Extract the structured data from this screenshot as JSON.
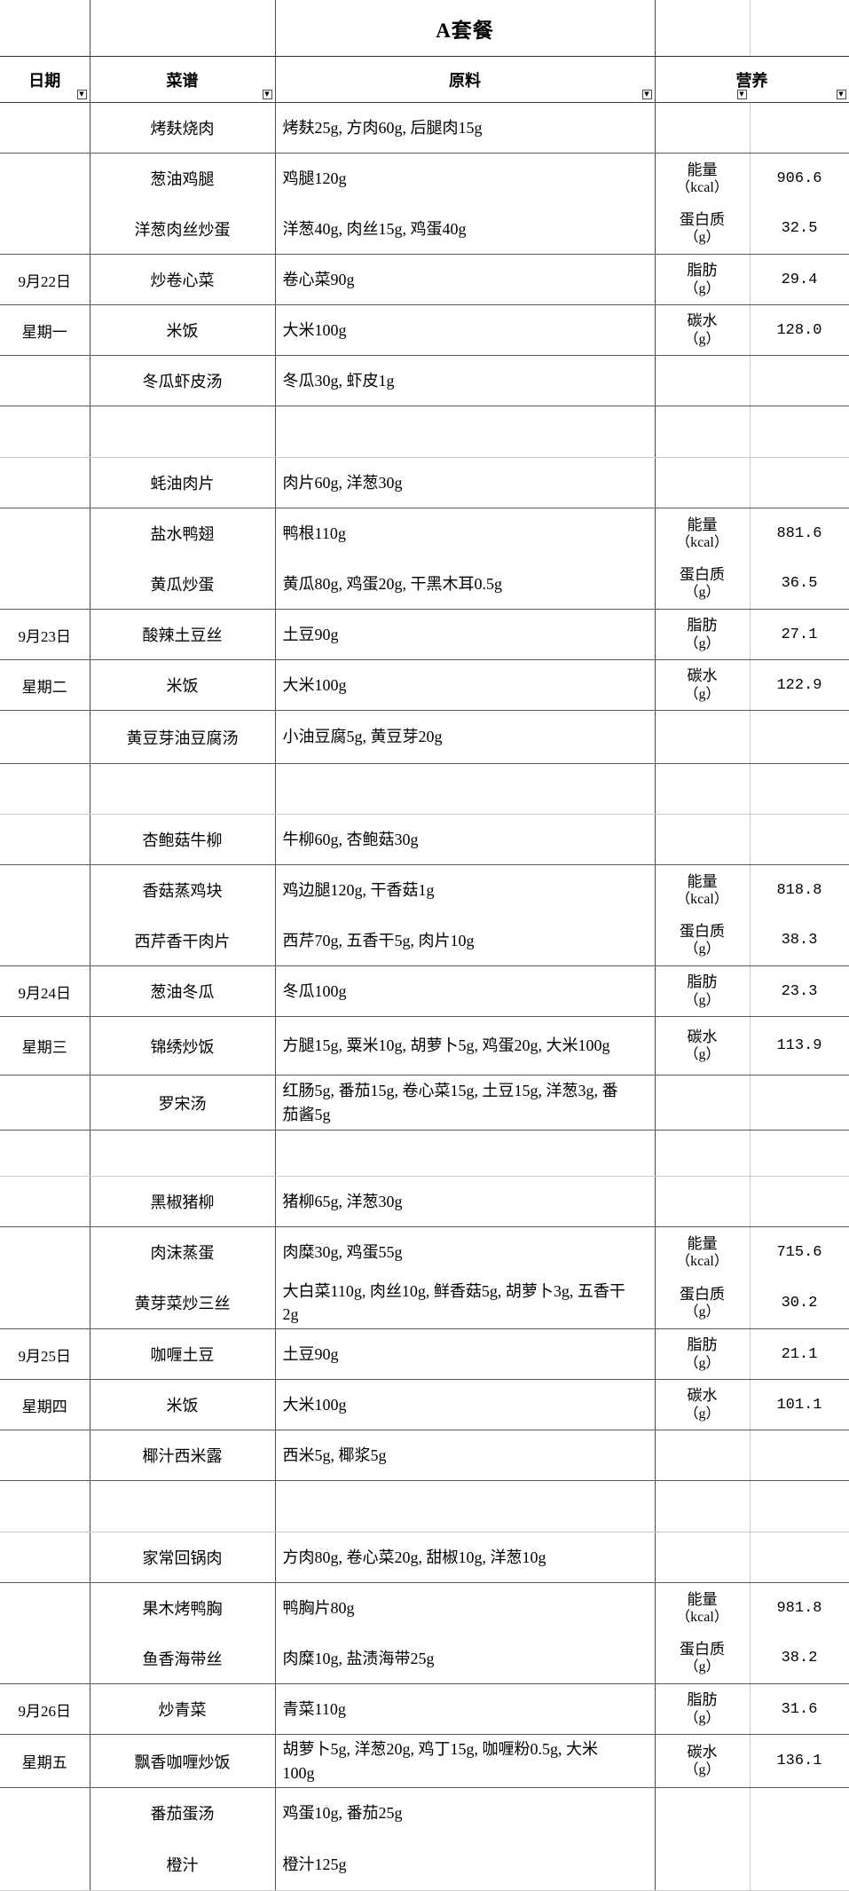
{
  "title": "A套餐",
  "columns": {
    "date": "日期",
    "menu": "菜谱",
    "ingredients": "原料",
    "nutrition": "营养"
  },
  "icons": {
    "filter_dropdown": "▼"
  },
  "nutrition_labels": [
    {
      "label": "能量",
      "unit": "（kcal）"
    },
    {
      "label": "蛋白质",
      "unit": "（g）"
    },
    {
      "label": "脂肪",
      "unit": "（g）"
    },
    {
      "label": "碳水",
      "unit": "（g）"
    }
  ],
  "days": [
    {
      "date_line1": "9月22日",
      "date_line2": "星期一",
      "dishes": [
        {
          "name": "烤麸烧肉",
          "ingredients": "烤麸25g, 方肉60g, 后腿肉15g"
        },
        {
          "name": "葱油鸡腿",
          "ingredients": "鸡腿120g"
        },
        {
          "name": "洋葱肉丝炒蛋",
          "ingredients": "洋葱40g, 肉丝15g, 鸡蛋40g"
        },
        {
          "name": "炒卷心菜",
          "ingredients": "卷心菜90g"
        },
        {
          "name": "米饭",
          "ingredients": "大米100g"
        },
        {
          "name": "冬瓜虾皮汤",
          "ingredients": "冬瓜30g, 虾皮1g"
        }
      ],
      "nutrition_values": [
        "906.6",
        "32.5",
        "29.4",
        "128.0"
      ]
    },
    {
      "date_line1": "9月23日",
      "date_line2": "星期二",
      "dishes": [
        {
          "name": "蚝油肉片",
          "ingredients": "肉片60g, 洋葱30g"
        },
        {
          "name": "盐水鸭翅",
          "ingredients": "鸭根110g"
        },
        {
          "name": "黄瓜炒蛋",
          "ingredients": "黄瓜80g, 鸡蛋20g, 干黑木耳0.5g"
        },
        {
          "name": "酸辣土豆丝",
          "ingredients": "土豆90g"
        },
        {
          "name": "米饭",
          "ingredients": "大米100g"
        },
        {
          "name": "黄豆芽油豆腐汤",
          "ingredients": "小油豆腐5g, 黄豆芽20g"
        }
      ],
      "nutrition_values": [
        "881.6",
        "36.5",
        "27.1",
        "122.9"
      ]
    },
    {
      "date_line1": "9月24日",
      "date_line2": "星期三",
      "dishes": [
        {
          "name": "杏鲍菇牛柳",
          "ingredients": "牛柳60g, 杏鲍菇30g"
        },
        {
          "name": "香菇蒸鸡块",
          "ingredients": "鸡边腿120g, 干香菇1g"
        },
        {
          "name": "西芹香干肉片",
          "ingredients": "西芹70g, 五香干5g, 肉片10g"
        },
        {
          "name": "葱油冬瓜",
          "ingredients": "冬瓜100g"
        },
        {
          "name": "锦绣炒饭",
          "ingredients": "方腿15g, 粟米10g, 胡萝卜5g, 鸡蛋20g, 大米100g"
        },
        {
          "name": "罗宋汤",
          "ingredients": "红肠5g, 番茄15g, 卷心菜15g, 土豆15g, 洋葱3g, 番茄酱5g"
        }
      ],
      "nutrition_values": [
        "818.8",
        "38.3",
        "23.3",
        "113.9"
      ]
    },
    {
      "date_line1": "9月25日",
      "date_line2": "星期四",
      "dishes": [
        {
          "name": "黑椒猪柳",
          "ingredients": "猪柳65g, 洋葱30g"
        },
        {
          "name": "肉沫蒸蛋",
          "ingredients": "肉糜30g, 鸡蛋55g"
        },
        {
          "name": "黄芽菜炒三丝",
          "ingredients": "大白菜110g, 肉丝10g, 鲜香菇5g, 胡萝卜3g, 五香干2g"
        },
        {
          "name": "咖喱土豆",
          "ingredients": "土豆90g"
        },
        {
          "name": "米饭",
          "ingredients": "大米100g"
        },
        {
          "name": "椰汁西米露",
          "ingredients": "西米5g, 椰浆5g"
        }
      ],
      "nutrition_values": [
        "715.6",
        "30.2",
        "21.1",
        "101.1"
      ]
    },
    {
      "date_line1": "9月26日",
      "date_line2": "星期五",
      "dishes": [
        {
          "name": "家常回锅肉",
          "ingredients": "方肉80g, 卷心菜20g, 甜椒10g, 洋葱10g"
        },
        {
          "name": "果木烤鸭胸",
          "ingredients": "鸭胸片80g"
        },
        {
          "name": "鱼香海带丝",
          "ingredients": "肉糜10g, 盐渍海带25g"
        },
        {
          "name": "炒青菜",
          "ingredients": "青菜110g"
        },
        {
          "name": "飘香咖喱炒饭",
          "ingredients": "胡萝卜5g, 洋葱20g, 鸡丁15g, 咖喱粉0.5g, 大米100g"
        },
        {
          "name": "番茄蛋汤",
          "ingredients": "鸡蛋10g, 番茄25g"
        },
        {
          "name": "橙汁",
          "ingredients": "橙汁125g"
        }
      ],
      "nutrition_values": [
        "981.8",
        "38.2",
        "31.6",
        "136.1"
      ]
    }
  ]
}
